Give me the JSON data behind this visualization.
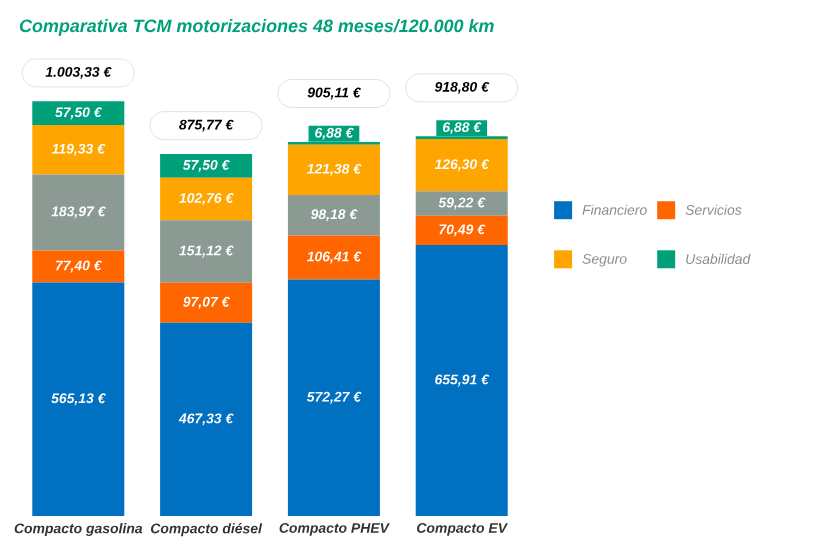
{
  "chart_data": {
    "type": "bar",
    "stacked": true,
    "title": "Comparativa TCM motorizaciones 48 meses/120.000 km",
    "categories": [
      "Compacto gasolina",
      "Compacto diésel",
      "Compacto PHEV",
      "Compacto EV"
    ],
    "series": [
      {
        "name": "Financiero",
        "color": "#0070c0",
        "values": [
          565.13,
          467.33,
          572.27,
          655.91
        ],
        "value_labels": [
          "565,13 €",
          "467,33 €",
          "572,27 €",
          "655,91 €"
        ]
      },
      {
        "name": "Servicios",
        "color": "#ff6600",
        "values": [
          77.4,
          97.07,
          106.41,
          70.49
        ],
        "value_labels": [
          "77,40 €",
          "97,07 €",
          "106,41 €",
          "70,49 €"
        ]
      },
      {
        "color": "#8c9a94",
        "values": [
          183.97,
          151.12,
          98.18,
          59.22
        ],
        "value_labels": [
          "183,97 €",
          "151,12 €",
          "98,18 €",
          "59,22 €"
        ]
      },
      {
        "name": "Seguro",
        "color": "#ffa500",
        "values": [
          119.33,
          102.76,
          121.38,
          126.3
        ],
        "value_labels": [
          "119,33 €",
          "102,76 €",
          "121,38 €",
          "126,30 €"
        ]
      },
      {
        "name": "Usabilidad",
        "color": "#00a07a",
        "values": [
          57.5,
          57.5,
          6.88,
          6.88
        ],
        "value_labels": [
          "57,50 €",
          "57,50 €",
          "6,88 €",
          "6,88 €"
        ]
      }
    ],
    "totals": [
      "1.003,33 €",
      "875,77 €",
      "905,11 €",
      "918,80 €"
    ],
    "legend": "right"
  }
}
